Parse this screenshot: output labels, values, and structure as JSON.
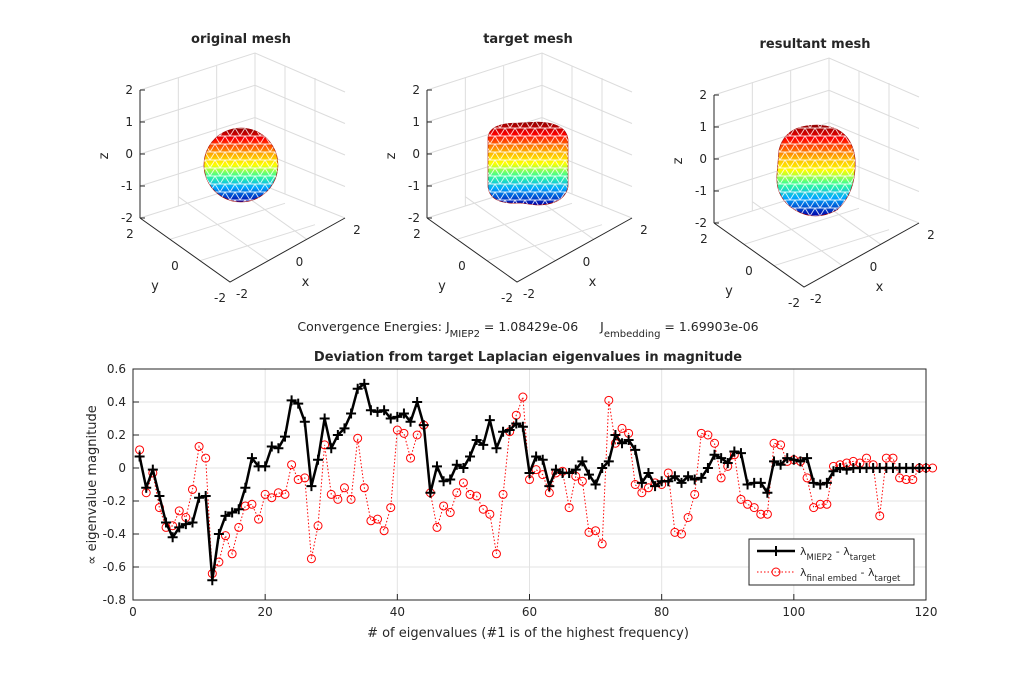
{
  "chart_data": [
    {
      "type": "3d-mesh",
      "title": "original mesh",
      "xlabel": "x",
      "ylabel": "y",
      "zlabel": "z",
      "zticks": [
        "-2",
        "-1",
        "0",
        "1",
        "2"
      ],
      "xticks": [
        "-2",
        "0",
        "2"
      ],
      "yticks": [
        "-2",
        "0",
        "2"
      ],
      "shape": "sphere",
      "colormap": "jet"
    },
    {
      "type": "3d-mesh",
      "title": "target mesh",
      "xlabel": "x",
      "ylabel": "y",
      "zlabel": "z",
      "zticks": [
        "-2",
        "-1",
        "0",
        "1",
        "2"
      ],
      "xticks": [
        "-2",
        "0",
        "2"
      ],
      "yticks": [
        "-2",
        "0",
        "2"
      ],
      "shape": "rounded-box",
      "colormap": "jet"
    },
    {
      "type": "3d-mesh",
      "title": "resultant mesh",
      "xlabel": "x",
      "ylabel": "y",
      "zlabel": "z",
      "zticks": [
        "-2",
        "-1",
        "0",
        "1",
        "2"
      ],
      "xticks": [
        "-2",
        "0",
        "2"
      ],
      "yticks": [
        "-2",
        "0",
        "2"
      ],
      "shape": "deformed-sphere",
      "colormap": "jet"
    },
    {
      "type": "line",
      "title": "Deviation from target Laplacian eigenvalues in magnitude",
      "xlabel": "# of eigenvalues (#1 is of the highest frequency)",
      "ylabel": "∝ eigenvalue magnitude",
      "xlim": [
        0,
        120
      ],
      "ylim": [
        -0.8,
        0.6
      ],
      "xticks": [
        0,
        20,
        40,
        60,
        80,
        100,
        120
      ],
      "yticks": [
        -0.8,
        -0.6,
        -0.4,
        -0.2,
        0,
        0.2,
        0.4,
        0.6
      ],
      "grid": true,
      "legend_position": "bottom-right",
      "x_start": 1,
      "series": [
        {
          "name_main": "λ",
          "name_sub1": "MIEP2",
          "name_mid": " - λ",
          "name_sub2": "target",
          "color": "#000000",
          "style": "solid-plus",
          "values": [
            0.07,
            -0.12,
            -0.01,
            -0.17,
            -0.33,
            -0.42,
            -0.36,
            -0.34,
            -0.33,
            -0.18,
            -0.17,
            -0.68,
            -0.4,
            -0.29,
            -0.27,
            -0.25,
            -0.12,
            0.06,
            0.01,
            0.01,
            0.13,
            0.12,
            0.19,
            0.41,
            0.39,
            0.28,
            -0.11,
            0.05,
            0.3,
            0.12,
            0.2,
            0.24,
            0.33,
            0.48,
            0.51,
            0.35,
            0.34,
            0.35,
            0.3,
            0.31,
            0.33,
            0.28,
            0.4,
            0.26,
            -0.15,
            0.01,
            -0.08,
            -0.07,
            0.02,
            0.0,
            0.07,
            0.17,
            0.14,
            0.29,
            0.12,
            0.22,
            0.23,
            0.27,
            0.25,
            -0.03,
            0.07,
            0.05,
            -0.11,
            -0.01,
            -0.03,
            -0.03,
            -0.01,
            0.04,
            -0.04,
            -0.1,
            0.0,
            0.04,
            0.2,
            0.15,
            0.17,
            0.11,
            -0.09,
            -0.03,
            -0.11,
            -0.08,
            -0.08,
            -0.05,
            -0.09,
            -0.05,
            -0.07,
            -0.06,
            0.0,
            0.08,
            0.06,
            0.03,
            0.1,
            0.09,
            -0.1,
            -0.09,
            -0.09,
            -0.15,
            0.04,
            0.02,
            0.06,
            0.05,
            0.04,
            0.06,
            -0.09,
            -0.1,
            -0.09,
            -0.02,
            0.0,
            -0.01,
            0.0,
            0.0,
            0.0,
            0.0,
            0.0,
            0.0,
            0.0,
            0.0,
            0.0,
            0.0,
            0.0,
            0.0
          ]
        },
        {
          "name_main": "λ",
          "name_sub1": "final embed",
          "name_mid": " - λ",
          "name_sub2": "target",
          "color": "#ff0000",
          "style": "dotted-circle",
          "values": [
            0.11,
            -0.15,
            -0.03,
            -0.24,
            -0.36,
            -0.35,
            -0.26,
            -0.3,
            -0.13,
            0.13,
            0.06,
            -0.64,
            -0.57,
            -0.41,
            -0.52,
            -0.36,
            -0.23,
            -0.22,
            -0.31,
            -0.16,
            -0.18,
            -0.15,
            -0.16,
            0.02,
            -0.07,
            -0.06,
            -0.55,
            -0.35,
            0.14,
            -0.16,
            -0.19,
            -0.12,
            -0.19,
            0.18,
            -0.12,
            -0.32,
            -0.31,
            -0.38,
            -0.24,
            0.23,
            0.21,
            0.06,
            0.2,
            0.26,
            -0.15,
            -0.36,
            -0.23,
            -0.27,
            -0.15,
            -0.09,
            -0.16,
            -0.17,
            -0.25,
            -0.28,
            -0.52,
            -0.16,
            0.22,
            0.32,
            0.43,
            -0.07,
            -0.01,
            -0.04,
            -0.15,
            -0.03,
            -0.02,
            -0.24,
            -0.05,
            -0.08,
            -0.39,
            -0.38,
            -0.46,
            0.41,
            0.15,
            0.24,
            0.21,
            -0.1,
            -0.15,
            -0.12,
            -0.09,
            -0.1,
            -0.03,
            -0.39,
            -0.4,
            -0.3,
            -0.16,
            0.21,
            0.2,
            0.15,
            -0.06,
            0.01,
            0.08,
            -0.19,
            -0.22,
            -0.24,
            -0.28,
            -0.28,
            0.15,
            0.14,
            0.04,
            0.05,
            0.04,
            -0.06,
            -0.24,
            -0.22,
            -0.22,
            0.01,
            0.02,
            0.03,
            0.04,
            0.03,
            0.06,
            0.02,
            -0.29,
            0.06,
            0.06,
            -0.06,
            -0.07,
            -0.07,
            0.0,
            0.0,
            0.0
          ]
        }
      ]
    }
  ],
  "energy": {
    "prefix": "Convergence Energies: J",
    "sub1": "MIEP2",
    "val1": " = 1.08429e-06",
    "j2": "J",
    "sub2": "embedding",
    "val2": " = 1.69903e-06"
  }
}
